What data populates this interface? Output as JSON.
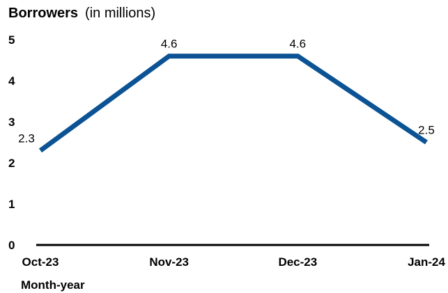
{
  "chart_data": {
    "type": "line",
    "title": "Borrowers",
    "subtitle": "(in millions)",
    "xlabel": "Month-year",
    "ylabel": "",
    "categories": [
      "Oct-23",
      "Nov-23",
      "Dec-23",
      "Jan-24"
    ],
    "series": [
      {
        "values": [
          2.3,
          4.6,
          4.6,
          2.5
        ],
        "data_labels": [
          "2.3",
          "4.6",
          "4.6",
          "2.5"
        ],
        "color": "#0b5394"
      }
    ],
    "yticks": [
      "0",
      "1",
      "2",
      "3",
      "4",
      "5"
    ],
    "ylim": [
      0,
      5
    ],
    "grid": false,
    "legend": "none"
  }
}
